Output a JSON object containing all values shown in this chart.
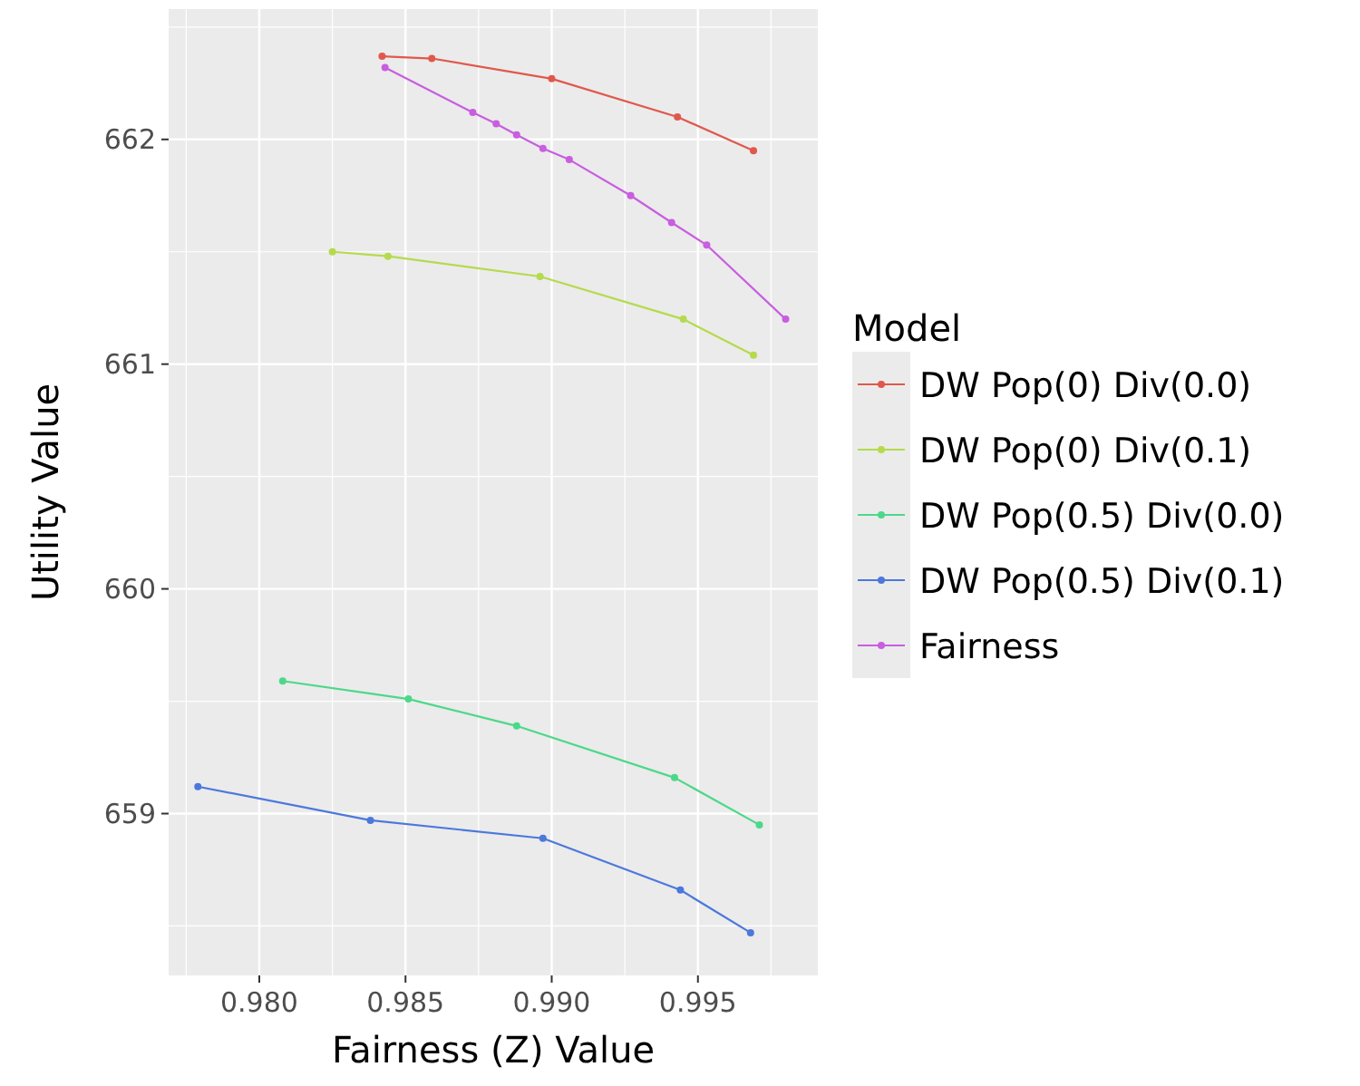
{
  "chart_data": {
    "type": "line",
    "xlabel": "Fairness (Z) Value",
    "ylabel": "Utility Value",
    "legend_title": "Model",
    "legend": "right",
    "grid": true,
    "marker": "circle",
    "xlim": [
      0.9769,
      0.9991
    ],
    "xticks": [
      {
        "value": 0.98,
        "label": "0.980"
      },
      {
        "value": 0.985,
        "label": "0.985"
      },
      {
        "value": 0.99,
        "label": "0.990"
      },
      {
        "value": 0.995,
        "label": "0.995"
      }
    ],
    "ylim": [
      658.28,
      662.58
    ],
    "yticks": [
      659,
      660,
      661,
      662
    ],
    "series": [
      {
        "name": "DW Pop(0) Div(0.0)",
        "color": "#e0584c",
        "x": [
          0.9842,
          0.9859,
          0.99,
          0.9943,
          0.9969
        ],
        "values": [
          662.37,
          662.36,
          662.27,
          662.1,
          661.95
        ]
      },
      {
        "name": "DW Pop(0) Div(0.1)",
        "color": "#b5da4c",
        "x": [
          0.9825,
          0.9844,
          0.9896,
          0.9945,
          0.9969
        ],
        "values": [
          661.5,
          661.48,
          661.39,
          661.2,
          661.04
        ]
      },
      {
        "name": "DW Pop(0.5) Div(0.0)",
        "color": "#4cd88a",
        "x": [
          0.9808,
          0.9851,
          0.9888,
          0.9942,
          0.9971
        ],
        "values": [
          659.59,
          659.51,
          659.39,
          659.16,
          658.95
        ]
      },
      {
        "name": "DW Pop(0.5) Div(0.1)",
        "color": "#4c78dc",
        "x": [
          0.9779,
          0.9838,
          0.9897,
          0.9944,
          0.9968
        ],
        "values": [
          659.12,
          658.97,
          658.89,
          658.66,
          658.47
        ]
      },
      {
        "name": "Fairness",
        "color": "#c85ee0",
        "x": [
          0.9843,
          0.9873,
          0.9881,
          0.9888,
          0.9897,
          0.9906,
          0.9927,
          0.9941,
          0.9953,
          0.998
        ],
        "values": [
          662.32,
          662.12,
          662.07,
          662.02,
          661.96,
          661.91,
          661.75,
          661.63,
          661.53,
          661.2
        ]
      }
    ]
  }
}
